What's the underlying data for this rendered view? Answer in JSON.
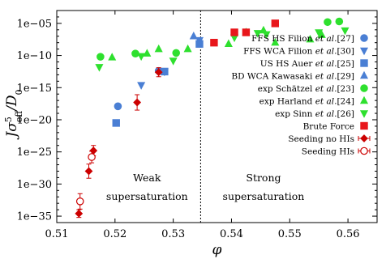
{
  "chart_data": {
    "type": "scatter",
    "title": "",
    "xlabel": "φ",
    "ylabel": "Jσ⁵eff/D₀",
    "xlim": [
      0.51,
      0.565
    ],
    "yscale": "log",
    "ylim_exp": [
      -36,
      -3
    ],
    "x_ticks": [
      0.51,
      0.52,
      0.53,
      0.54,
      0.55,
      0.56
    ],
    "x_tick_labels": [
      "0.51",
      "0.52",
      "0.53",
      "0.54",
      "0.55",
      "0.56"
    ],
    "y_ticks_exp": [
      -35,
      -30,
      -25,
      -20,
      -15,
      -10,
      -5
    ],
    "y_tick_labels": [
      "1e−35",
      "1e−30",
      "1e−25",
      "1e−20",
      "1e−15",
      "1e−10",
      "1e−05"
    ],
    "vline_x": 0.5347,
    "region_labels": [
      {
        "text": "Weak",
        "x": 0.5255,
        "yexp": -29.6
      },
      {
        "text": "supersaturation",
        "x": 0.5255,
        "yexp": -32.5
      },
      {
        "text": "Strong",
        "x": 0.5455,
        "yexp": -29.6
      },
      {
        "text": "supersaturation",
        "x": 0.5455,
        "yexp": -32.5
      }
    ],
    "legend_position": "right",
    "series": [
      {
        "name": "FFS HS Filion et al.[27]",
        "label_plain": "FFS HS Filion ",
        "label_italic": "et al.",
        "label_ref": "[27]",
        "marker": "circle",
        "color": "#4a7fd4",
        "fill": true,
        "points": [
          [
            0.5205,
            -17.9
          ],
          [
            0.5275,
            -12.4
          ]
        ]
      },
      {
        "name": "FFS WCA Filion et al.[30]",
        "label_plain": "FFS WCA Filion ",
        "label_italic": "et al.",
        "label_ref": "[30]",
        "marker": "triangle-down",
        "color": "#4a7fd4",
        "fill": true,
        "points": [
          [
            0.5245,
            -14.6
          ],
          [
            0.5285,
            -12.5
          ],
          [
            0.5345,
            -7.6
          ]
        ]
      },
      {
        "name": "US HS Auer et al.[25]",
        "label_plain": "US HS Auer ",
        "label_italic": "et al.",
        "label_ref": "[25]",
        "marker": "square",
        "color": "#4a7fd4",
        "fill": true,
        "points": [
          [
            0.5202,
            -20.5
          ],
          [
            0.5285,
            -12.5
          ],
          [
            0.5345,
            -8.2
          ]
        ]
      },
      {
        "name": "BD WCA Kawasaki et al.[29]",
        "label_plain": "BD WCA Kawasaki ",
        "label_italic": "et al.",
        "label_ref": "[29]",
        "marker": "triangle-up",
        "color": "#4a7fd4",
        "fill": true,
        "points": [
          [
            0.5335,
            -7.0
          ]
        ]
      },
      {
        "name": "exp Schätzel et al.[23]",
        "label_plain": "exp Schätzel ",
        "label_italic": "et al.",
        "label_ref": "[23]",
        "marker": "circle",
        "color": "#2ee02e",
        "fill": true,
        "points": [
          [
            0.5175,
            -10.2
          ],
          [
            0.5235,
            -9.7
          ],
          [
            0.5305,
            -9.6
          ],
          [
            0.5565,
            -4.8
          ],
          [
            0.5585,
            -4.7
          ]
        ]
      },
      {
        "name": "exp Harland et al.[24]",
        "label_plain": "exp Harland ",
        "label_italic": "et al.",
        "label_ref": "[24]",
        "marker": "triangle-up",
        "color": "#2ee02e",
        "fill": true,
        "points": [
          [
            0.5195,
            -10.3
          ],
          [
            0.5255,
            -9.7
          ],
          [
            0.5275,
            -9.0
          ],
          [
            0.5325,
            -9.0
          ],
          [
            0.5395,
            -8.2
          ],
          [
            0.5425,
            -6.4
          ],
          [
            0.5455,
            -6.1
          ],
          [
            0.5475,
            -8.0
          ],
          [
            0.5535,
            -7.5
          ],
          [
            0.5555,
            -6.8
          ]
        ]
      },
      {
        "name": "exp Sinn et al.[26]",
        "label_plain": "exp Sinn ",
        "label_italic": "et al.",
        "label_ref": "[26]",
        "marker": "triangle-down",
        "color": "#2ee02e",
        "fill": true,
        "points": [
          [
            0.5173,
            -11.8
          ],
          [
            0.5245,
            -10.1
          ],
          [
            0.53,
            -10.8
          ],
          [
            0.5405,
            -7.2
          ],
          [
            0.5445,
            -6.5
          ],
          [
            0.546,
            -6.7
          ],
          [
            0.555,
            -6.4
          ],
          [
            0.5595,
            -6.1
          ]
        ]
      },
      {
        "name": "Brute Force",
        "label_plain": "Brute Force",
        "label_italic": "",
        "label_ref": "",
        "marker": "square",
        "color": "#e8161b",
        "fill": true,
        "points": [
          [
            0.537,
            -8.0
          ],
          [
            0.5405,
            -6.4
          ],
          [
            0.5425,
            -6.4
          ],
          [
            0.5475,
            -5.0
          ]
        ]
      },
      {
        "name": "Seeding no HIs",
        "label_plain": "Seeding no HIs",
        "label_italic": "",
        "label_ref": "",
        "marker": "diamond",
        "color": "#cc0000",
        "fill": true,
        "points": [
          [
            0.5138,
            -34.6
          ],
          [
            0.5155,
            -28.0
          ],
          [
            0.5163,
            -24.8
          ],
          [
            0.5238,
            -17.3
          ],
          [
            0.5275,
            -12.6
          ]
        ],
        "yerr": [
          0.6,
          1.1,
          0.8,
          1.2,
          0.7
        ],
        "xerr": [
          0.0004,
          0.0004,
          0.0004,
          0.0004,
          0.0004
        ]
      },
      {
        "name": "Seeding HIs",
        "label_plain": "Seeding HIs",
        "label_italic": "",
        "label_ref": "",
        "marker": "circle",
        "color": "#cc0000",
        "fill": false,
        "points": [
          [
            0.514,
            -32.7
          ],
          [
            0.516,
            -25.8
          ]
        ],
        "yerr": [
          1.2,
          0.9
        ],
        "xerr": [
          0.0004,
          0.0004
        ]
      }
    ]
  }
}
